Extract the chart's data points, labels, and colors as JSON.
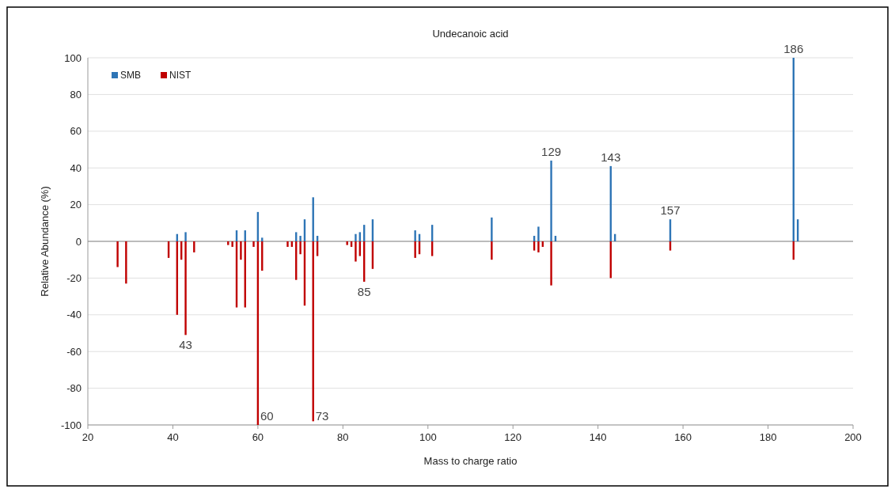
{
  "chart_data": {
    "type": "bar",
    "title": "Undecanoic acid",
    "xlabel": "Mass to charge ratio",
    "ylabel": "Relative Abundance (%)",
    "xlim": [
      20,
      200
    ],
    "xticks": [
      20,
      40,
      60,
      80,
      100,
      120,
      140,
      160,
      180,
      200
    ],
    "ylim": [
      -100,
      100
    ],
    "yticks": [
      -100,
      -80,
      -60,
      -40,
      -20,
      0,
      20,
      40,
      60,
      80,
      100
    ],
    "grid": "y",
    "legend": "top left",
    "series": [
      {
        "name": "SMB",
        "color": "#2e75b6",
        "x": [
          41,
          43,
          55,
          57,
          60,
          61,
          69,
          70,
          71,
          73,
          74,
          83,
          84,
          85,
          87,
          97,
          98,
          101,
          115,
          125,
          126,
          129,
          130,
          143,
          144,
          157,
          186,
          187
        ],
        "values": [
          4,
          5,
          6,
          6,
          16,
          2,
          5,
          3,
          12,
          24,
          3,
          4,
          5,
          9,
          12,
          6,
          4,
          9,
          13,
          3,
          8,
          44,
          3,
          41,
          4,
          12,
          100,
          12
        ]
      },
      {
        "name": "NIST",
        "color": "#c00000",
        "x": [
          27,
          29,
          39,
          41,
          42,
          43,
          45,
          53,
          54,
          55,
          56,
          57,
          59,
          60,
          61,
          67,
          68,
          69,
          70,
          71,
          73,
          74,
          81,
          82,
          83,
          84,
          85,
          87,
          97,
          98,
          101,
          115,
          125,
          126,
          127,
          129,
          143,
          157,
          186
        ],
        "values": [
          -14,
          -23,
          -9,
          -40,
          -10,
          -51,
          -6,
          -2,
          -3,
          -36,
          -10,
          -36,
          -3,
          -100,
          -16,
          -3,
          -3,
          -21,
          -7,
          -35,
          -98,
          -8,
          -2,
          -3,
          -11,
          -8,
          -22,
          -15,
          -9,
          -7,
          -8,
          -10,
          -5,
          -6,
          -3,
          -24,
          -20,
          -5,
          -10
        ]
      }
    ],
    "annotations": [
      {
        "text": "43",
        "x": 43,
        "y": -51
      },
      {
        "text": "60",
        "x": 60,
        "y": -100
      },
      {
        "text": "73",
        "x": 73,
        "y": -98
      },
      {
        "text": "85",
        "x": 85,
        "y": -22
      },
      {
        "text": "129",
        "x": 129,
        "y": 44
      },
      {
        "text": "143",
        "x": 143,
        "y": 41
      },
      {
        "text": "157",
        "x": 157,
        "y": 12
      },
      {
        "text": "186",
        "x": 186,
        "y": 100
      }
    ]
  }
}
